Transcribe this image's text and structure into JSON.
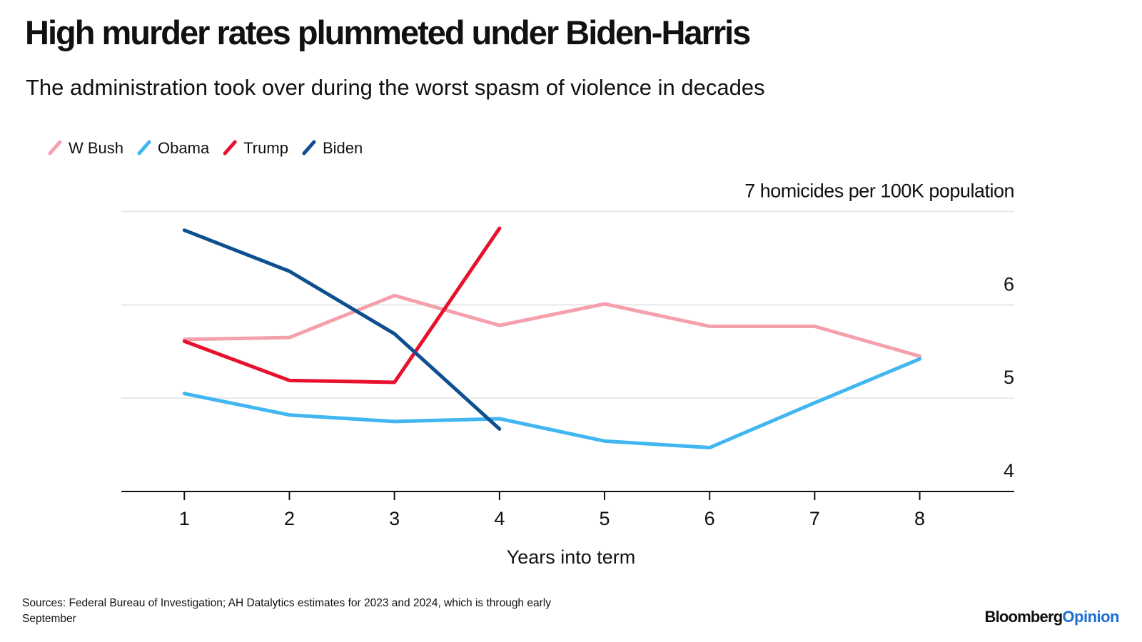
{
  "chart_data": {
    "type": "line",
    "title": "High murder rates plummeted under Biden-Harris",
    "subtitle": "The administration took over during the worst spasm of violence in decades",
    "x_label": "Years into term",
    "x": [
      1,
      2,
      3,
      4,
      5,
      6,
      7,
      8
    ],
    "xlim": [
      0.4,
      8.9
    ],
    "xticks": [
      1,
      2,
      3,
      4,
      5,
      6,
      7,
      8
    ],
    "ylim": [
      4,
      7.05
    ],
    "yticks": [
      4,
      5,
      6,
      {
        "value": 7,
        "label": "7 homicides per 100K population"
      }
    ],
    "grid": true,
    "legend": "top-left",
    "series": [
      {
        "name": "W Bush",
        "color": "#f4a0ad",
        "values": [
          5.63,
          5.65,
          6.1,
          5.78,
          6.01,
          5.77,
          5.77,
          5.45
        ]
      },
      {
        "name": "Obama",
        "color": "#41b6f0",
        "values": [
          5.05,
          4.82,
          4.75,
          4.78,
          4.54,
          4.47,
          4.95,
          5.42
        ]
      },
      {
        "name": "Trump",
        "color": "#e8112d",
        "values": [
          5.61,
          5.19,
          5.17,
          6.82,
          null,
          null,
          null,
          null
        ]
      },
      {
        "name": "Biden",
        "color": "#0d4f8f",
        "values": [
          6.8,
          6.36,
          5.69,
          4.67,
          null,
          null,
          null,
          null
        ]
      }
    ],
    "source": "Sources: Federal Bureau of Investigation; AH Datalytics estimates for 2023 and 2024, which is through early September",
    "brand": [
      "Bloomberg",
      "Opinion"
    ]
  }
}
